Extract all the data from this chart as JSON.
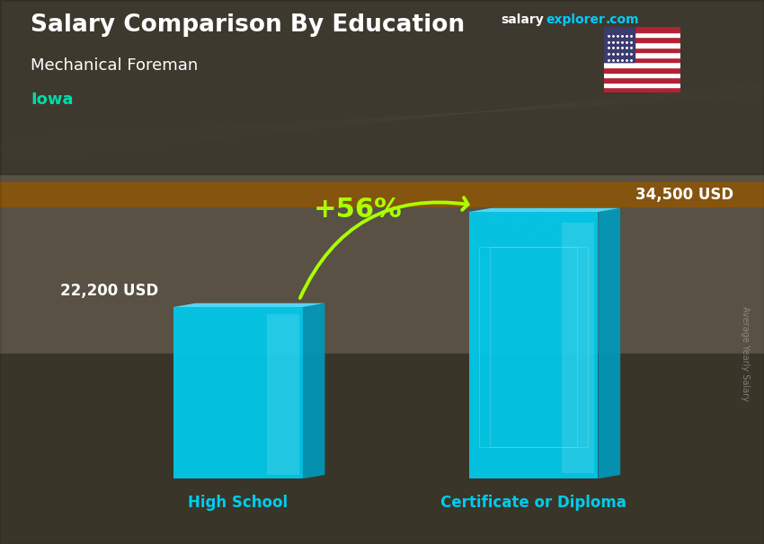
{
  "title_main": "Salary Comparison By Education",
  "subtitle": "Mechanical Foreman",
  "location": "Iowa",
  "categories": [
    "High School",
    "Certificate or Diploma"
  ],
  "values": [
    22200,
    34500
  ],
  "value_labels": [
    "22,200 USD",
    "34,500 USD"
  ],
  "pct_change": "+56%",
  "bar_color_front": "#00CCEE",
  "bar_color_side": "#0099BB",
  "bar_color_top": "#55DDFF",
  "ylabel_rotated": "Average Yearly Salary",
  "title_color": "#FFFFFF",
  "subtitle_color": "#FFFFFF",
  "location_color": "#00DDAA",
  "salary_word_color": "#FFFFFF",
  "explorer_color": "#00CCFF",
  "category_color": "#00CCEE",
  "pct_color": "#AAFF00",
  "arrow_color": "#AAFF00",
  "value_label_color": "#FFFFFF",
  "ylabel_color": "#AAAAAA",
  "max_val": 40000,
  "bg_top_color": "#888877",
  "bg_bottom_color": "#555544"
}
